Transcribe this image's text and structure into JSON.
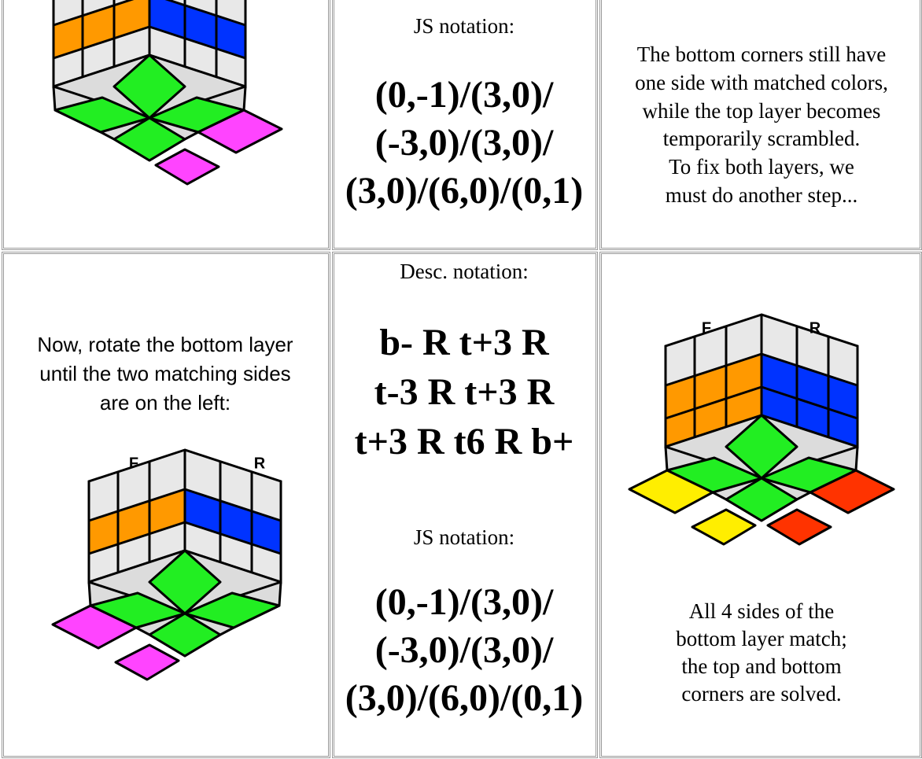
{
  "table": {
    "rows": [
      {
        "js_label": "JS notation:",
        "js_lines": [
          "(0,-1)/(3,0)/",
          "(-3,0)/(3,0)/",
          "(3,0)/(6,0)/(0,1)"
        ],
        "comment_lines": [
          "The bottom corners still have",
          "one side with matched colors,",
          "while the top layer becomes",
          "temporarily scrambled.",
          "To fix both layers, we",
          "must do another step..."
        ]
      },
      {
        "instruction_lines": [
          "Now, rotate the bottom layer",
          "until the two matching sides",
          "are on the left:"
        ],
        "left_cube_labels": [
          "F",
          "R"
        ],
        "desc_label": "Desc. notation:",
        "desc_lines": [
          "b- R t+3 R",
          "t-3 R t+3 R",
          "t+3 R t6 R b+"
        ],
        "js_label": "JS notation:",
        "js_lines": [
          "(0,-1)/(3,0)/",
          "(-3,0)/(3,0)/",
          "(3,0)/(6,0)/(0,1)"
        ],
        "result_cube_labels": [
          "F",
          "R"
        ],
        "result_lines": [
          "All 4 sides of the",
          "bottom layer match;",
          "the top and bottom",
          "corners are solved."
        ]
      }
    ]
  }
}
